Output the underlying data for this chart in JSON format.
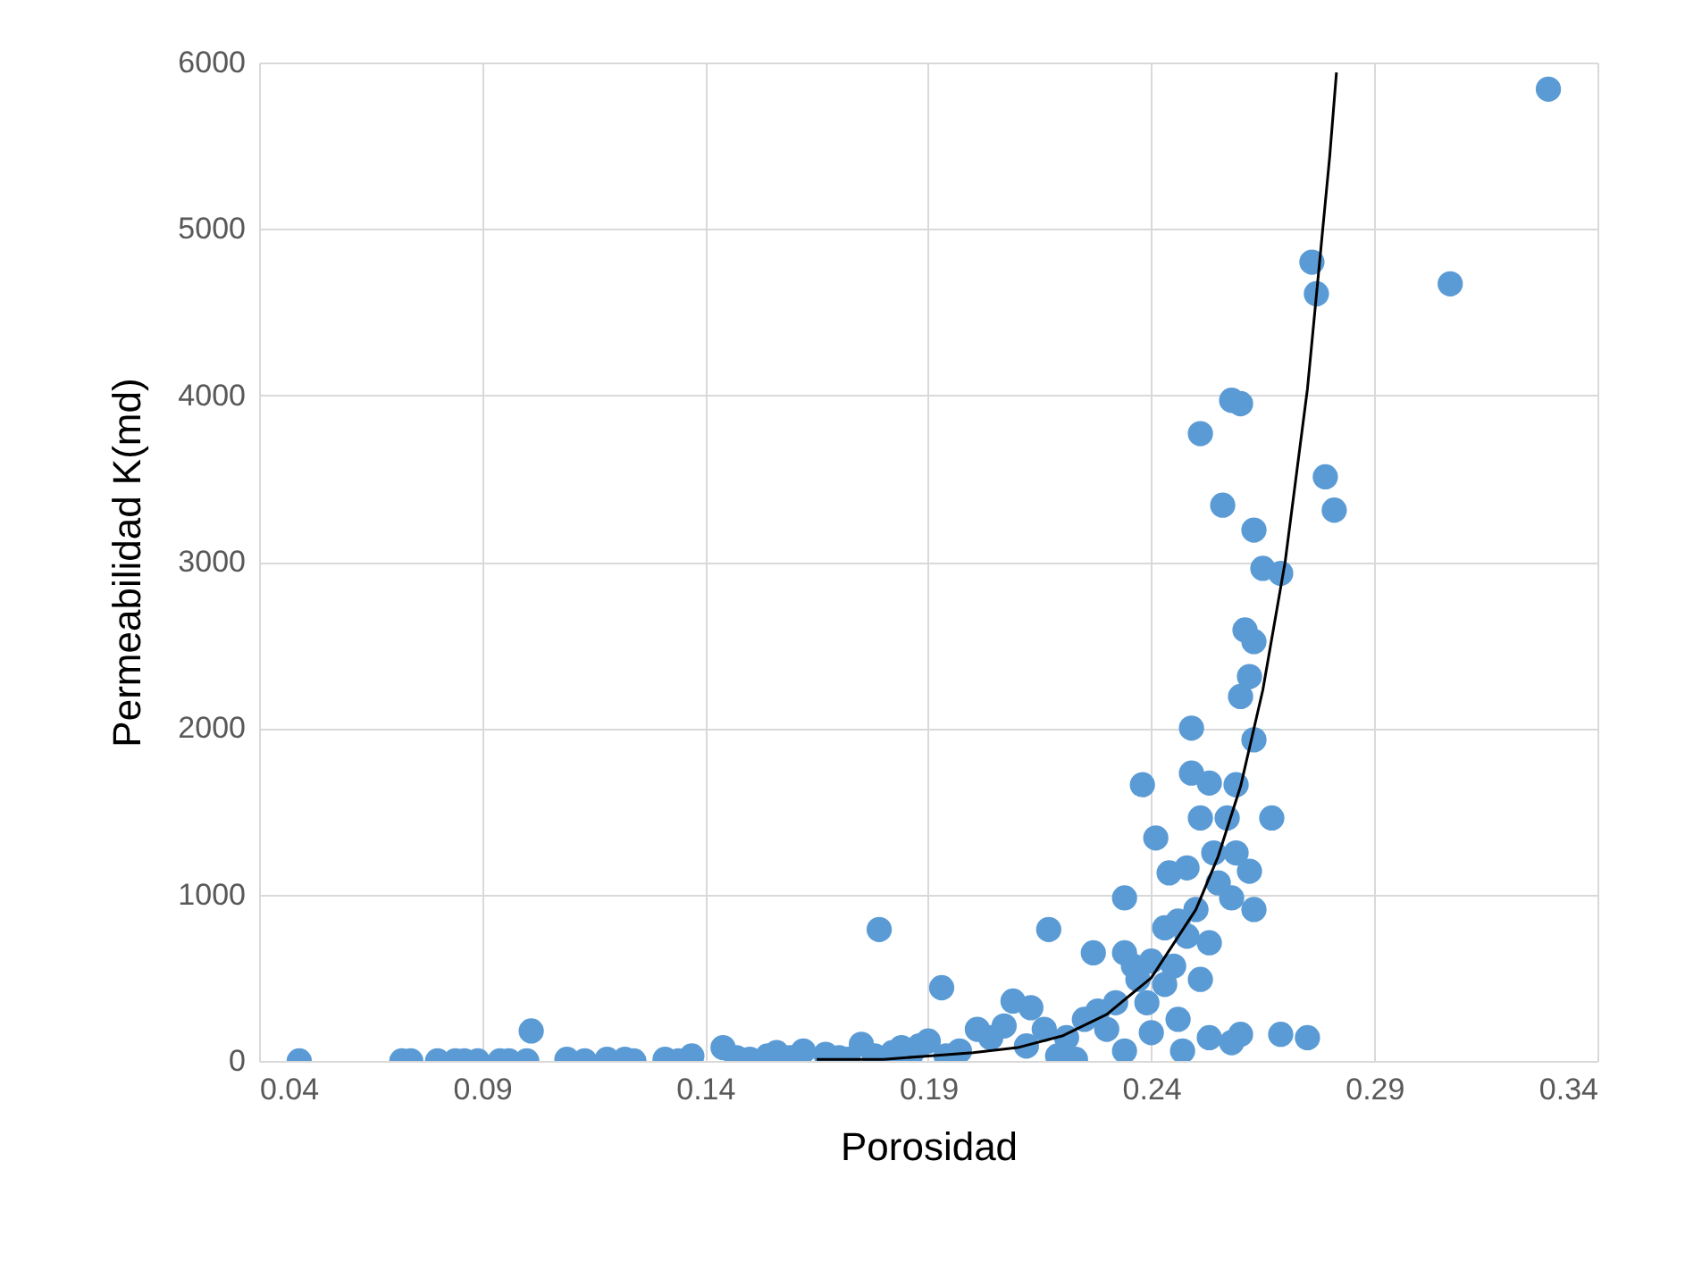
{
  "chart_data": {
    "type": "scatter",
    "xlabel": "Porosidad",
    "ylabel": "Permeabilidad K(md)",
    "xlim": [
      0.04,
      0.34
    ],
    "ylim": [
      0,
      6000
    ],
    "xticks": [
      0.04,
      0.09,
      0.14,
      0.19,
      0.24,
      0.29,
      0.34
    ],
    "yticks": [
      0,
      1000,
      2000,
      3000,
      4000,
      5000,
      6000
    ],
    "grid": true,
    "marker": "circle",
    "series": [
      {
        "color": "#5b9bd5",
        "x": [
          0.049,
          0.072,
          0.074,
          0.08,
          0.084,
          0.086,
          0.089,
          0.094,
          0.096,
          0.1,
          0.101,
          0.109,
          0.113,
          0.118,
          0.122,
          0.124,
          0.131,
          0.134,
          0.137,
          0.144,
          0.147,
          0.15,
          0.154,
          0.156,
          0.159,
          0.162,
          0.167,
          0.17,
          0.172,
          0.175,
          0.178,
          0.182,
          0.184,
          0.186,
          0.188,
          0.19,
          0.179,
          0.193,
          0.194,
          0.197,
          0.201,
          0.204,
          0.207,
          0.209,
          0.212,
          0.213,
          0.216,
          0.217,
          0.219,
          0.221,
          0.223,
          0.225,
          0.227,
          0.228,
          0.23,
          0.232,
          0.234,
          0.234,
          0.234,
          0.236,
          0.237,
          0.238,
          0.239,
          0.24,
          0.24,
          0.241,
          0.243,
          0.243,
          0.244,
          0.245,
          0.246,
          0.246,
          0.247,
          0.248,
          0.248,
          0.249,
          0.249,
          0.25,
          0.251,
          0.251,
          0.251,
          0.253,
          0.253,
          0.253,
          0.254,
          0.255,
          0.256,
          0.257,
          0.258,
          0.258,
          0.258,
          0.259,
          0.259,
          0.26,
          0.26,
          0.26,
          0.261,
          0.262,
          0.262,
          0.263,
          0.263,
          0.263,
          0.263,
          0.265,
          0.267,
          0.269,
          0.269,
          0.275,
          0.276,
          0.277,
          0.279,
          0.281,
          0.307,
          0.329
        ],
        "values": [
          0,
          0,
          0,
          0,
          0,
          0,
          0,
          0,
          0,
          0,
          180,
          10,
          0,
          10,
          10,
          0,
          10,
          0,
          30,
          80,
          20,
          10,
          30,
          50,
          20,
          60,
          40,
          20,
          10,
          100,
          30,
          50,
          80,
          30,
          90,
          120,
          790,
          440,
          30,
          60,
          190,
          140,
          210,
          360,
          90,
          320,
          190,
          790,
          30,
          140,
          10,
          250,
          650,
          300,
          190,
          350,
          980,
          650,
          60,
          570,
          490,
          1660,
          350,
          170,
          600,
          1340,
          800,
          460,
          1130,
          570,
          840,
          250,
          60,
          1160,
          750,
          2000,
          1730,
          910,
          3770,
          1460,
          490,
          140,
          1670,
          710,
          1250,
          1070,
          3340,
          1460,
          980,
          110,
          3970,
          1660,
          1250,
          160,
          3950,
          2190,
          2590,
          2310,
          1140,
          3190,
          2520,
          910,
          1930,
          2960,
          1460,
          2930,
          160,
          140,
          4800,
          4610,
          3510,
          3310,
          4670,
          5840
        ]
      },
      {
        "type": "line",
        "color": "#000000",
        "line_style": "solid",
        "marker": "none",
        "x": [
          0.165,
          0.18,
          0.19,
          0.2,
          0.21,
          0.22,
          0.23,
          0.24,
          0.25,
          0.255,
          0.26,
          0.265,
          0.27,
          0.275,
          0.28,
          0.2815
        ],
        "values": [
          10,
          10,
          30,
          50,
          80,
          150,
          280,
          500,
          910,
          1230,
          1650,
          2230,
          3000,
          4040,
          5440,
          5940
        ]
      }
    ]
  }
}
